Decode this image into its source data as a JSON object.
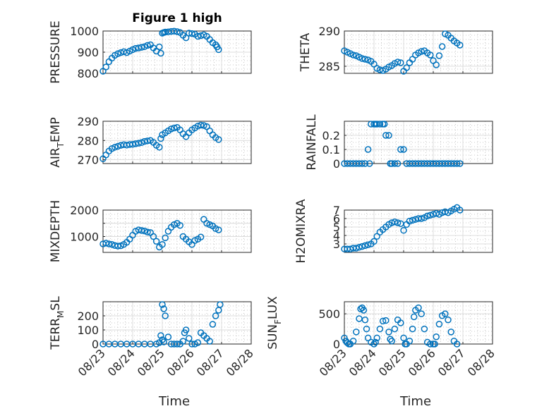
{
  "figure_title": "Figure 1 high",
  "chart_data": [
    {
      "type": "scatter",
      "id": "pressure",
      "title": "Figure 1 high",
      "ylabel": "PRESSURE",
      "ylabel_sub": "",
      "ylabel_after": "",
      "xlabel": "",
      "ylim": [
        800,
        1000
      ],
      "yticks": [
        800,
        900,
        1000
      ],
      "yticklabels": [
        "800",
        "900",
        "1000"
      ],
      "xlim_days": [
        0,
        5
      ],
      "xticklabels": [
        "08/23",
        "08/24",
        "08/25",
        "08/26",
        "08/27",
        "08/28"
      ],
      "show_xticklabels": false,
      "grid": true,
      "marker": "circle",
      "series": [
        {
          "x_days": [
            0,
            0.1,
            0.2,
            0.3,
            0.4,
            0.5,
            0.6,
            0.7,
            0.8,
            0.9,
            1.0,
            1.1,
            1.2,
            1.3,
            1.4,
            1.5,
            1.6,
            1.7,
            1.8,
            1.9,
            1.95,
            2.0,
            2.05,
            2.1,
            2.2,
            2.3,
            2.4,
            2.5,
            2.6,
            2.7,
            2.8,
            2.9,
            3.0,
            3.1,
            3.2,
            3.3,
            3.4,
            3.5,
            3.6,
            3.7,
            3.8,
            3.85,
            3.9
          ],
          "y": [
            810,
            830,
            855,
            872,
            885,
            893,
            898,
            902,
            898,
            905,
            912,
            918,
            920,
            923,
            926,
            932,
            935,
            920,
            905,
            925,
            895,
            990,
            993,
            995,
            996,
            998,
            999,
            997,
            993,
            980,
            968,
            990,
            988,
            985,
            975,
            978,
            982,
            975,
            960,
            945,
            935,
            925,
            912
          ]
        }
      ]
    },
    {
      "type": "scatter",
      "id": "theta",
      "ylabel": "THETA",
      "ylabel_sub": "",
      "ylabel_after": "",
      "xlabel": "",
      "ylim": [
        284,
        290
      ],
      "yticks": [
        285,
        290
      ],
      "yticklabels": [
        "285",
        "290"
      ],
      "xlim_days": [
        0,
        6
      ],
      "xticklabels": [
        "08/23",
        "08/24",
        "08/25",
        "08/26",
        "08/27",
        "08/28"
      ],
      "show_xticklabels": false,
      "grid": true,
      "marker": "circle",
      "series": [
        {
          "x_days": [
            0,
            0.1,
            0.2,
            0.3,
            0.4,
            0.5,
            0.6,
            0.7,
            0.8,
            0.9,
            1.0,
            1.1,
            1.2,
            1.3,
            1.4,
            1.5,
            1.6,
            1.7,
            1.8,
            1.9,
            2.0,
            2.1,
            2.2,
            2.3,
            2.4,
            2.5,
            2.6,
            2.7,
            2.8,
            2.9,
            3.0,
            3.1,
            3.2,
            3.3,
            3.4,
            3.5,
            3.6,
            3.7,
            3.8,
            3.9
          ],
          "y": [
            287.2,
            287.0,
            286.8,
            286.6,
            286.5,
            286.3,
            286.1,
            286.0,
            285.9,
            285.7,
            285.3,
            284.7,
            284.5,
            284.4,
            284.6,
            284.9,
            285.1,
            285.4,
            285.6,
            285.5,
            284.3,
            284.8,
            285.5,
            286.0,
            286.6,
            286.9,
            287.1,
            287.2,
            286.9,
            286.6,
            285.8,
            285.2,
            286.5,
            287.8,
            289.6,
            289.4,
            289.0,
            288.6,
            288.3,
            288.0
          ]
        }
      ]
    },
    {
      "type": "scatter",
      "id": "air_temp",
      "ylabel": "AIR",
      "ylabel_sub": "T",
      "ylabel_after": "EMP",
      "xlabel": "",
      "ylim": [
        268,
        290
      ],
      "yticks": [
        270,
        280,
        290
      ],
      "yticklabels": [
        "270",
        "280",
        "290"
      ],
      "xlim_days": [
        0,
        5
      ],
      "xticklabels": [
        "08/23",
        "08/24",
        "08/25",
        "08/26",
        "08/27",
        "08/28"
      ],
      "show_xticklabels": false,
      "grid": true,
      "marker": "circle",
      "series": [
        {
          "x_days": [
            0,
            0.1,
            0.2,
            0.3,
            0.4,
            0.5,
            0.6,
            0.7,
            0.8,
            0.9,
            1.0,
            1.1,
            1.2,
            1.3,
            1.4,
            1.5,
            1.6,
            1.7,
            1.8,
            1.9,
            1.95,
            2.0,
            2.1,
            2.2,
            2.3,
            2.4,
            2.5,
            2.6,
            2.7,
            2.8,
            2.9,
            3.0,
            3.1,
            3.2,
            3.3,
            3.4,
            3.5,
            3.6,
            3.7,
            3.8,
            3.9
          ],
          "y": [
            270.5,
            272.5,
            274.5,
            275.8,
            276.5,
            277.0,
            277.5,
            277.8,
            277.6,
            277.9,
            278.0,
            278.3,
            278.6,
            278.9,
            279.5,
            279.8,
            280.0,
            279.0,
            277.5,
            276.5,
            281.0,
            283.0,
            284.0,
            285.0,
            286.0,
            286.5,
            286.8,
            285.5,
            283.5,
            282.0,
            284.0,
            285.5,
            286.5,
            287.5,
            288.0,
            287.8,
            287.2,
            285.0,
            283.0,
            281.5,
            280.5
          ]
        }
      ]
    },
    {
      "type": "scatter",
      "id": "rainfall",
      "ylabel": "RAINFALL",
      "ylabel_sub": "",
      "ylabel_after": "",
      "xlabel": "",
      "ylim": [
        0,
        0.3
      ],
      "yticks": [
        0,
        0.1,
        0.2
      ],
      "yticklabels": [
        "0",
        "0.1",
        "0.2"
      ],
      "xlim_days": [
        0,
        4
      ],
      "xticklabels": [
        "08/23",
        "08/24",
        "08/25",
        "08/26",
        "08/27",
        "08/28"
      ],
      "show_xticklabels": false,
      "grid": true,
      "marker": "circle",
      "series": [
        {
          "x_days": [
            0,
            0.1,
            0.2,
            0.3,
            0.4,
            0.5,
            0.6,
            0.7,
            0.8,
            0.85,
            0.9,
            1.0,
            1.05,
            1.1,
            1.2,
            1.3,
            1.35,
            1.4,
            1.5,
            1.55,
            1.6,
            1.7,
            1.8,
            1.9,
            2.0,
            2.1,
            2.2,
            2.3,
            2.4,
            2.5,
            2.6,
            2.7,
            2.8,
            2.9,
            3.0,
            3.1,
            3.2,
            3.3,
            3.4,
            3.5,
            3.6,
            3.7,
            3.8,
            3.9
          ],
          "y": [
            0,
            0,
            0,
            0,
            0,
            0,
            0,
            0,
            0.1,
            0,
            0.28,
            0.28,
            0.28,
            0.28,
            0.28,
            0.28,
            0.28,
            0.2,
            0.2,
            0,
            0,
            0,
            0,
            0.1,
            0.1,
            0,
            0,
            0,
            0,
            0,
            0,
            0,
            0,
            0,
            0,
            0,
            0,
            0,
            0,
            0,
            0,
            0,
            0,
            0
          ]
        }
      ]
    },
    {
      "type": "scatter",
      "id": "mixdepth",
      "ylabel": "MIXDEPTH",
      "ylabel_sub": "",
      "ylabel_after": "",
      "xlabel": "",
      "ylim": [
        400,
        2000
      ],
      "yticks": [
        1000,
        1500,
        2000
      ],
      "yticklabels": [
        "1000",
        "",
        "2000"
      ],
      "xlim_days": [
        0,
        5
      ],
      "xticklabels": [
        "08/23",
        "08/24",
        "08/25",
        "08/26",
        "08/27",
        "08/28"
      ],
      "show_xticklabels": false,
      "grid": true,
      "marker": "circle",
      "series": [
        {
          "x_days": [
            0,
            0.1,
            0.2,
            0.3,
            0.4,
            0.5,
            0.6,
            0.7,
            0.8,
            0.9,
            1.0,
            1.1,
            1.2,
            1.3,
            1.4,
            1.5,
            1.6,
            1.7,
            1.8,
            1.9,
            2.0,
            2.1,
            2.2,
            2.3,
            2.4,
            2.5,
            2.6,
            2.7,
            2.8,
            2.9,
            3.0,
            3.1,
            3.2,
            3.3,
            3.4,
            3.5,
            3.6,
            3.7,
            3.8,
            3.9
          ],
          "y": [
            720,
            750,
            720,
            700,
            660,
            640,
            650,
            700,
            780,
            900,
            1050,
            1200,
            1250,
            1230,
            1210,
            1170,
            1150,
            1000,
            820,
            600,
            700,
            950,
            1200,
            1350,
            1450,
            1500,
            1420,
            1000,
            900,
            800,
            700,
            850,
            900,
            980,
            1650,
            1500,
            1450,
            1400,
            1300,
            1250
          ]
        }
      ]
    },
    {
      "type": "scatter",
      "id": "h2omixra",
      "ylabel": "H2OMIXRA",
      "ylabel_sub": "",
      "ylabel_after": "",
      "xlabel": "",
      "ylim": [
        2,
        7
      ],
      "yticks": [
        3,
        4,
        5,
        6,
        7
      ],
      "yticklabels": [
        "3",
        "4",
        "5",
        "6",
        "7"
      ],
      "xlim_days": [
        0,
        4
      ],
      "xticklabels": [
        "08/23",
        "08/24",
        "08/25",
        "08/26",
        "08/27",
        "08/28"
      ],
      "show_xticklabels": false,
      "grid": true,
      "marker": "circle",
      "series": [
        {
          "x_days": [
            0,
            0.1,
            0.2,
            0.3,
            0.4,
            0.5,
            0.6,
            0.7,
            0.8,
            0.9,
            1.0,
            1.1,
            1.2,
            1.3,
            1.4,
            1.5,
            1.6,
            1.7,
            1.8,
            1.9,
            2.0,
            2.1,
            2.2,
            2.3,
            2.4,
            2.5,
            2.6,
            2.7,
            2.8,
            2.9,
            3.0,
            3.1,
            3.2,
            3.3,
            3.4,
            3.5,
            3.6,
            3.7,
            3.8,
            3.9
          ],
          "y": [
            2.4,
            2.4,
            2.4,
            2.5,
            2.5,
            2.6,
            2.7,
            2.8,
            2.9,
            3.0,
            3.3,
            3.9,
            4.4,
            4.7,
            5.0,
            5.3,
            5.5,
            5.6,
            5.5,
            5.4,
            4.6,
            5.3,
            5.7,
            5.8,
            5.9,
            6.0,
            6.0,
            6.1,
            6.3,
            6.4,
            6.5,
            6.6,
            6.5,
            6.7,
            6.8,
            6.7,
            6.9,
            7.1,
            7.3,
            7.0
          ]
        }
      ]
    },
    {
      "type": "scatter",
      "id": "terr_msl",
      "ylabel": "TERR",
      "ylabel_sub": "M",
      "ylabel_after": "SL",
      "xlabel": "Time",
      "ylim": [
        0,
        300
      ],
      "yticks": [
        0,
        100,
        200
      ],
      "yticklabels": [
        "0",
        "100",
        "200"
      ],
      "xlim_days": [
        0,
        5
      ],
      "xticklabels": [
        "08/23",
        "08/24",
        "08/25",
        "08/26",
        "08/27",
        "08/28"
      ],
      "show_xticklabels": true,
      "grid": true,
      "marker": "circle",
      "series": [
        {
          "x_days": [
            0,
            0.2,
            0.4,
            0.6,
            0.8,
            1.0,
            1.2,
            1.4,
            1.6,
            1.8,
            1.9,
            2.0,
            2.05,
            2.1,
            2.2,
            2.3,
            2.4,
            2.5,
            2.6,
            2.7,
            2.75,
            2.8,
            2.9,
            3.0,
            3.1,
            3.2,
            3.3,
            3.4,
            3.5,
            3.6,
            3.7,
            3.8,
            3.9,
            3.95,
            2.0,
            2.05,
            1.95
          ],
          "y": [
            0,
            0,
            0,
            0,
            0,
            0,
            0,
            0,
            0,
            0,
            10,
            280,
            250,
            200,
            50,
            0,
            0,
            0,
            0,
            20,
            80,
            100,
            40,
            0,
            0,
            10,
            80,
            60,
            40,
            20,
            140,
            200,
            240,
            280,
            30,
            15,
            60
          ]
        }
      ]
    },
    {
      "type": "scatter",
      "id": "sun_flux",
      "ylabel": "SUN",
      "ylabel_sub": "F",
      "ylabel_after": "LUX",
      "xlabel": "Time",
      "ylim": [
        0,
        700
      ],
      "yticks": [
        0,
        500
      ],
      "yticklabels": [
        "0",
        "500"
      ],
      "xlim_days": [
        0,
        5
      ],
      "xticklabels": [
        "08/23",
        "08/24",
        "08/25",
        "08/26",
        "08/27",
        "08/28"
      ],
      "show_xticklabels": true,
      "grid": true,
      "marker": "circle",
      "series": [
        {
          "x_days": [
            0,
            0.05,
            0.1,
            0.15,
            0.2,
            0.3,
            0.4,
            0.5,
            0.55,
            0.6,
            0.65,
            0.7,
            0.75,
            0.8,
            0.9,
            1.0,
            1.05,
            1.1,
            1.2,
            1.3,
            1.4,
            1.5,
            1.55,
            1.6,
            1.7,
            1.8,
            1.9,
            2.0,
            2.05,
            2.1,
            2.2,
            2.3,
            2.35,
            2.4,
            2.5,
            2.6,
            2.7,
            2.8,
            2.9,
            3.0,
            3.05,
            3.1,
            3.2,
            3.3,
            3.4,
            3.5,
            3.6,
            3.7,
            3.8
          ],
          "y": [
            100,
            50,
            20,
            0,
            0,
            50,
            200,
            420,
            580,
            600,
            560,
            400,
            250,
            100,
            30,
            0,
            30,
            100,
            250,
            380,
            390,
            200,
            80,
            50,
            250,
            400,
            350,
            100,
            0,
            0,
            50,
            250,
            450,
            560,
            600,
            500,
            250,
            30,
            0,
            0,
            0,
            120,
            330,
            470,
            500,
            400,
            200,
            50,
            0
          ]
        }
      ]
    }
  ]
}
